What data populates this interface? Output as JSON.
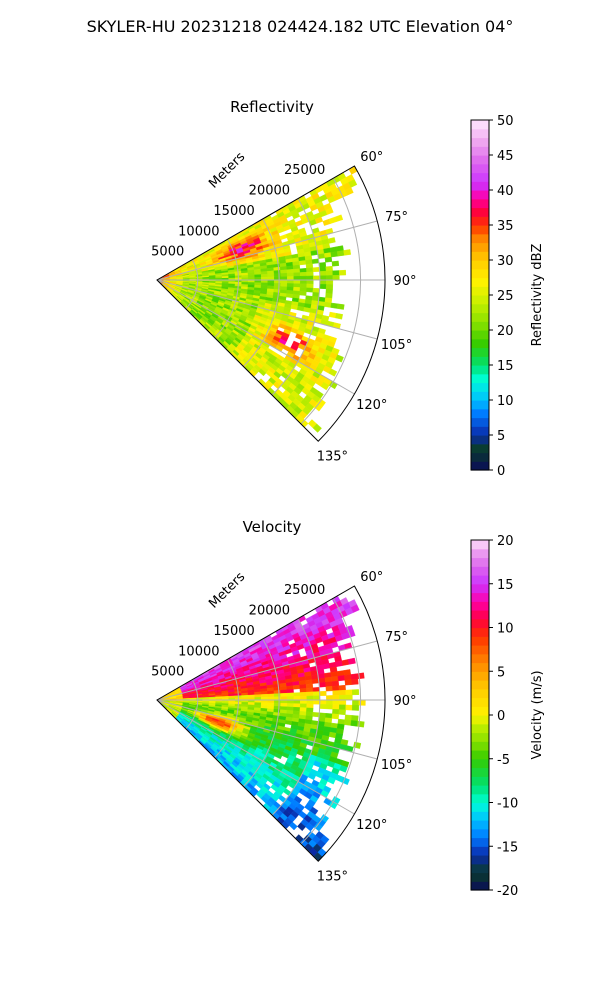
{
  "suptitle": "SKYLER-HU  20231218  024424.182 UTC Elevation 04°",
  "colors": {
    "background": "#ffffff",
    "grid": "#b0b0b0",
    "axis": "#000000"
  },
  "chart_data": [
    {
      "type": "heatmap",
      "projection": "polar",
      "title": "Reflectivity",
      "radial_label": "Meters",
      "radial_ticks": [
        "5000",
        "10000",
        "15000",
        "20000",
        "25000"
      ],
      "radial_range": [
        0,
        28000
      ],
      "angle_range_deg": [
        60,
        135
      ],
      "angle_ticks": [
        "60°",
        "75°",
        "90°",
        "105°",
        "120°",
        "135°"
      ],
      "grid": true,
      "colorbar": {
        "label": "Reflectivity dBZ",
        "range": [
          0,
          50
        ],
        "ticks": [
          "0",
          "5",
          "10",
          "15",
          "20",
          "25",
          "30",
          "35",
          "40",
          "45",
          "50"
        ]
      },
      "colormap": [
        {
          "v": 0,
          "c": "#0a0a5a"
        },
        {
          "v": 3,
          "c": "#0a3d2a"
        },
        {
          "v": 5,
          "c": "#0a2aa8"
        },
        {
          "v": 8,
          "c": "#0077ff"
        },
        {
          "v": 10,
          "c": "#00bfff"
        },
        {
          "v": 13,
          "c": "#00ffd5"
        },
        {
          "v": 15,
          "c": "#00e070"
        },
        {
          "v": 18,
          "c": "#33cc00"
        },
        {
          "v": 21,
          "c": "#88e000"
        },
        {
          "v": 24,
          "c": "#c8f000"
        },
        {
          "v": 27,
          "c": "#fff200"
        },
        {
          "v": 30,
          "c": "#ffcc00"
        },
        {
          "v": 33,
          "c": "#ff8800"
        },
        {
          "v": 35,
          "c": "#ff3300"
        },
        {
          "v": 37,
          "c": "#ff0040"
        },
        {
          "v": 39,
          "c": "#ff00aa"
        },
        {
          "v": 41,
          "c": "#cc33ff"
        },
        {
          "v": 44,
          "c": "#dd66ee"
        },
        {
          "v": 47,
          "c": "#f0a8f0"
        },
        {
          "v": 50,
          "c": "#ffe8ff"
        }
      ],
      "field_description": "mostly 18-30 dBZ; yellow band near 60-80 deg; bands of 33-38 dBZ at ~70 deg 8-14 km and ~115 deg 15-21 km"
    },
    {
      "type": "heatmap",
      "projection": "polar",
      "title": "Velocity",
      "radial_label": "Meters",
      "radial_ticks": [
        "5000",
        "10000",
        "15000",
        "20000",
        "25000"
      ],
      "radial_range": [
        0,
        28000
      ],
      "angle_range_deg": [
        60,
        135
      ],
      "angle_ticks": [
        "60°",
        "75°",
        "90°",
        "105°",
        "120°",
        "135°"
      ],
      "grid": true,
      "colorbar": {
        "label": "Velocity (m/s)",
        "range": [
          -20,
          20
        ],
        "ticks": [
          "-20",
          "-15",
          "-10",
          "-5",
          "0",
          "5",
          "10",
          "15",
          "20"
        ]
      },
      "colormap": [
        {
          "v": -20,
          "c": "#0a0a5a"
        },
        {
          "v": -18,
          "c": "#0a3d2a"
        },
        {
          "v": -16,
          "c": "#0a2aa8"
        },
        {
          "v": -14,
          "c": "#0077ff"
        },
        {
          "v": -12,
          "c": "#00bfff"
        },
        {
          "v": -10,
          "c": "#00ffd5"
        },
        {
          "v": -8,
          "c": "#00e070"
        },
        {
          "v": -5,
          "c": "#33cc00"
        },
        {
          "v": -3,
          "c": "#88e000"
        },
        {
          "v": -1,
          "c": "#c8f000"
        },
        {
          "v": 0,
          "c": "#fff200"
        },
        {
          "v": 3,
          "c": "#ffcc00"
        },
        {
          "v": 6,
          "c": "#ff8800"
        },
        {
          "v": 9,
          "c": "#ff3300"
        },
        {
          "v": 11,
          "c": "#ff0040"
        },
        {
          "v": 13,
          "c": "#ff00aa"
        },
        {
          "v": 15,
          "c": "#cc33ff"
        },
        {
          "v": 17,
          "c": "#dd66ee"
        },
        {
          "v": 19,
          "c": "#f0a8f0"
        },
        {
          "v": 20,
          "c": "#ffe8ff"
        }
      ],
      "field_description": "positive 8-16 m/s near 60-85 deg; yellow 0-3 m/s near 90-100 deg; negative -5 to -12 m/s near 105-135 deg; strong positive arc near 105-115 deg at 4-12 km"
    }
  ]
}
